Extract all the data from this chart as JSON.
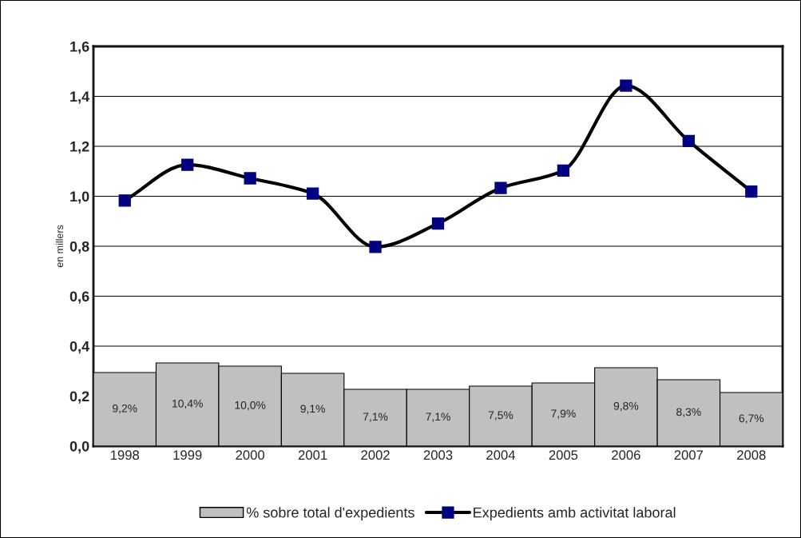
{
  "chart_data": {
    "type": "bar",
    "ylabel": "en millers",
    "categories": [
      "1998",
      "1999",
      "2000",
      "2001",
      "2002",
      "2003",
      "2004",
      "2005",
      "2006",
      "2007",
      "2008"
    ],
    "series": [
      {
        "name": "% sobre total d'expedients",
        "axis": "y2",
        "color": "#c0c0c0",
        "values": [
          9.2,
          10.4,
          10.0,
          9.1,
          7.1,
          7.1,
          7.5,
          7.9,
          9.8,
          8.3,
          6.7
        ],
        "value_labels": [
          "9,2%",
          "10,4%",
          "10,0%",
          "9,1%",
          "7,1%",
          "7,1%",
          "7,5%",
          "7,9%",
          "9,8%",
          "8,3%",
          "6,7%"
        ]
      },
      {
        "name": "Expedients amb activitat laboral",
        "type": "line",
        "color": "#000080",
        "marker": "square",
        "values": [
          0.983,
          1.126,
          1.072,
          1.011,
          0.797,
          0.891,
          1.033,
          1.103,
          1.443,
          1.221,
          1.019
        ]
      }
    ],
    "ylim": [
      0,
      1.6
    ],
    "yticks": [
      {
        "value": 0,
        "label": "0,0"
      },
      {
        "value": 0.2,
        "label": "0,2"
      },
      {
        "value": 0.4,
        "label": "0,4"
      },
      {
        "value": 0.6,
        "label": "0,6"
      },
      {
        "value": 0.8,
        "label": "0,8"
      },
      {
        "value": 1.0,
        "label": "1,0"
      },
      {
        "value": 1.2,
        "label": "1,2"
      },
      {
        "value": 1.4,
        "label": "1,4"
      },
      {
        "value": 1.6,
        "label": "1,6"
      }
    ],
    "y2lim": [
      0,
      50
    ],
    "grid": "y",
    "legend": "bottom"
  }
}
